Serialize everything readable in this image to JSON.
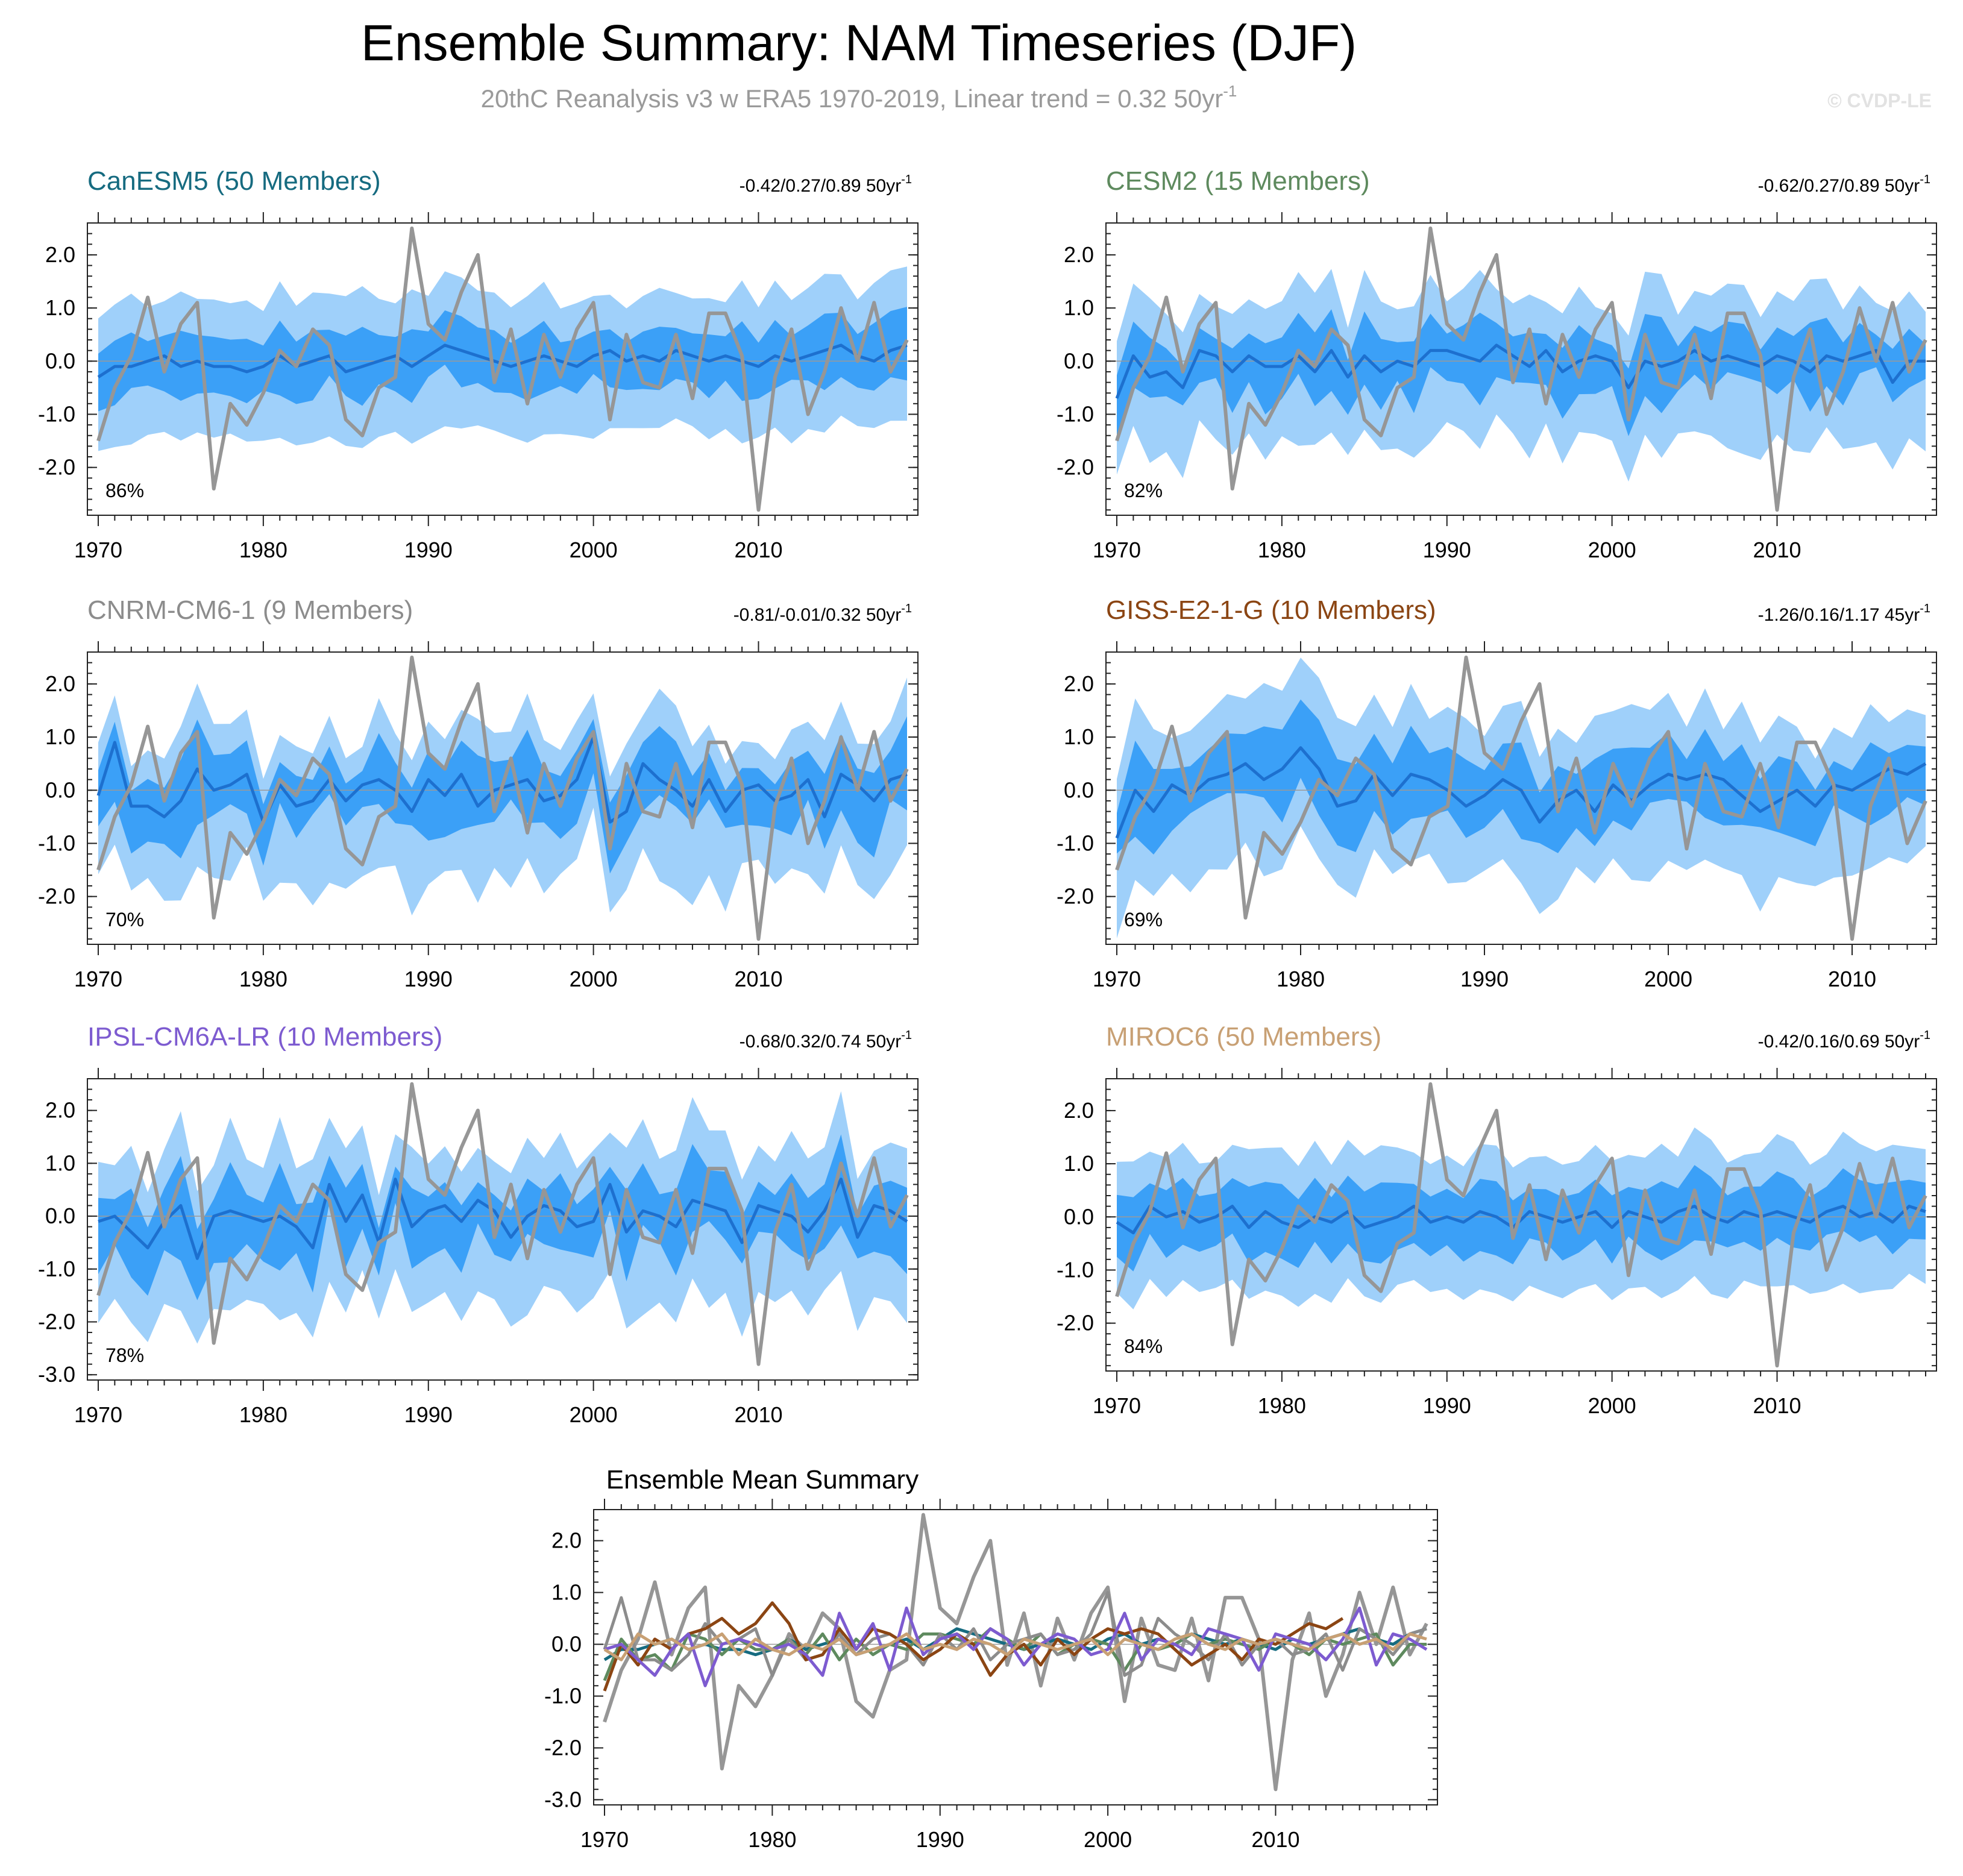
{
  "title": "Ensemble Summary: NAM Timeseries (DJF)",
  "subtitle": {
    "text": "20thC Reanalysis v3 w ERA5 1970-2019, Linear trend = 0.32 50yr",
    "sup": "-1"
  },
  "copyright": "© CVDP-LE",
  "colors": {
    "outer_band": "#9fd0fa",
    "inner_band": "#3ba0f7",
    "ensemble_mean": "#1d70cf",
    "observation": "#969696",
    "zero_line": "#9a9a9a"
  },
  "chart_data": [
    {
      "type": "area",
      "title": "CanESM5 (50 Members)",
      "title_color": "#166b80",
      "trend": "-0.42/0.27/0.89 50yr",
      "trend_sup": "-1",
      "percent": "86%",
      "x_start": 1970,
      "x_end": 2019,
      "ylim": [
        -2.9,
        2.6
      ],
      "yticks": [
        2.0,
        1.0,
        0.0,
        -1.0,
        -2.0
      ],
      "ytick_labels": [
        "2.0",
        "1.0",
        "0.0",
        "-1.0",
        "-2.0"
      ],
      "xticks": [
        1970,
        1980,
        1990,
        2000,
        2010
      ],
      "xtick_labels": [
        "1970",
        "1980",
        "1990",
        "2000",
        "2010"
      ],
      "outer_amp": 1.25,
      "inner_amp": 0.55,
      "variability": 0.35,
      "seed": 11
    },
    {
      "type": "area",
      "title": "CESM2 (15 Members)",
      "title_color": "#5e8a5e",
      "trend": "-0.62/0.27/0.89 50yr",
      "trend_sup": "-1",
      "percent": "82%",
      "x_start": 1970,
      "x_end": 2019,
      "ylim": [
        -2.9,
        2.6
      ],
      "yticks": [
        2.0,
        1.0,
        0.0,
        -1.0,
        -2.0
      ],
      "ytick_labels": [
        "2.0",
        "1.0",
        "0.0",
        "-1.0",
        "-2.0"
      ],
      "xticks": [
        1970,
        1980,
        1990,
        2000,
        2010
      ],
      "xtick_labels": [
        "1970",
        "1980",
        "1990",
        "2000",
        "2010"
      ],
      "outer_amp": 1.3,
      "inner_amp": 0.6,
      "variability": 0.55,
      "seed": 23
    },
    {
      "type": "area",
      "title": "CNRM-CM6-1 (9 Members)",
      "title_color": "#8c8c8c",
      "trend": "-0.81/-0.01/0.32 50yr",
      "trend_sup": "-1",
      "percent": "70%",
      "x_start": 1970,
      "x_end": 2019,
      "ylim": [
        -2.9,
        2.6
      ],
      "yticks": [
        2.0,
        1.0,
        0.0,
        -1.0,
        -2.0
      ],
      "ytick_labels": [
        "2.0",
        "1.0",
        "0.0",
        "-1.0",
        "-2.0"
      ],
      "xticks": [
        1970,
        1980,
        1990,
        2000,
        2010
      ],
      "xtick_labels": [
        "1970",
        "1980",
        "1990",
        "2000",
        "2010"
      ],
      "outer_amp": 1.3,
      "inner_amp": 0.7,
      "variability": 0.75,
      "seed": 37
    },
    {
      "type": "area",
      "title": "GISS-E2-1-G (10 Members)",
      "title_color": "#8b4513",
      "trend": "-1.26/0.16/1.17 45yr",
      "trend_sup": "-1",
      "percent": "69%",
      "x_start": 1970,
      "x_end": 2014,
      "ylim": [
        -2.9,
        2.6
      ],
      "yticks": [
        2.0,
        1.0,
        0.0,
        -1.0,
        -2.0
      ],
      "ytick_labels": [
        "2.0",
        "1.0",
        "0.0",
        "-1.0",
        "-2.0"
      ],
      "xticks": [
        1970,
        1980,
        1990,
        2000,
        2010
      ],
      "xtick_labels": [
        "1970",
        "1980",
        "1990",
        "2000",
        "2010"
      ],
      "outer_amp": 1.35,
      "inner_amp": 0.65,
      "variability": 0.6,
      "seed": 41
    },
    {
      "type": "area",
      "title": "IPSL-CM6A-LR (10 Members)",
      "title_color": "#7d5bd0",
      "trend": "-0.68/0.32/0.74 50yr",
      "trend_sup": "-1",
      "percent": "78%",
      "x_start": 1970,
      "x_end": 2019,
      "ylim": [
        -3.1,
        2.6
      ],
      "yticks": [
        2.0,
        1.0,
        0.0,
        -1.0,
        -2.0,
        -3.0
      ],
      "ytick_labels": [
        "2.0",
        "1.0",
        "0.0",
        "-1.0",
        "-2.0",
        "-3.0"
      ],
      "xticks": [
        1970,
        1980,
        1990,
        2000,
        2010
      ],
      "xtick_labels": [
        "1970",
        "1980",
        "1990",
        "2000",
        "2010"
      ],
      "outer_amp": 1.4,
      "inner_amp": 0.65,
      "variability": 0.7,
      "seed": 53
    },
    {
      "type": "area",
      "title": "MIROC6 (50 Members)",
      "title_color": "#c8a074",
      "trend": "-0.42/0.16/0.69 50yr",
      "trend_sup": "-1",
      "percent": "84%",
      "x_start": 1970,
      "x_end": 2019,
      "ylim": [
        -2.9,
        2.6
      ],
      "yticks": [
        2.0,
        1.0,
        0.0,
        -1.0,
        -2.0
      ],
      "ytick_labels": [
        "2.0",
        "1.0",
        "0.0",
        "-1.0",
        "-2.0"
      ],
      "xticks": [
        1970,
        1980,
        1990,
        2000,
        2010
      ],
      "xtick_labels": [
        "1970",
        "1980",
        "1990",
        "2000",
        "2010"
      ],
      "outer_amp": 1.25,
      "inner_amp": 0.6,
      "variability": 0.3,
      "seed": 67
    },
    {
      "type": "line",
      "title": "Ensemble Mean Summary",
      "x_start": 1970,
      "x_end": 2019,
      "ylim": [
        -3.1,
        2.6
      ],
      "yticks": [
        2.0,
        1.0,
        0.0,
        -1.0,
        -2.0,
        -3.0
      ],
      "ytick_labels": [
        "2.0",
        "1.0",
        "0.0",
        "-1.0",
        "-2.0",
        "-3.0"
      ],
      "xticks": [
        1970,
        1980,
        1990,
        2000,
        2010
      ],
      "xtick_labels": [
        "1970",
        "1980",
        "1990",
        "2000",
        "2010"
      ],
      "series": [
        {
          "name": "20thC Reanalysis v3 w ERA5",
          "color": "#969696"
        },
        {
          "name": "CanESM5",
          "color": "#166b80"
        },
        {
          "name": "CESM2",
          "color": "#5e8a5e"
        },
        {
          "name": "CNRM-CM6-1",
          "color": "#8c8c8c"
        },
        {
          "name": "GISS-E2-1-G",
          "color": "#8b4513"
        },
        {
          "name": "IPSL-CM6A-LR",
          "color": "#7d5bd0"
        },
        {
          "name": "MIROC6",
          "color": "#c8a074"
        }
      ]
    }
  ],
  "observation": {
    "name": "20thC Reanalysis v3 w ERA5",
    "years": [
      1970,
      1971,
      1972,
      1973,
      1974,
      1975,
      1976,
      1977,
      1978,
      1979,
      1980,
      1981,
      1982,
      1983,
      1984,
      1985,
      1986,
      1987,
      1988,
      1989,
      1990,
      1991,
      1992,
      1993,
      1994,
      1995,
      1996,
      1997,
      1998,
      1999,
      2000,
      2001,
      2002,
      2003,
      2004,
      2005,
      2006,
      2007,
      2008,
      2009,
      2010,
      2011,
      2012,
      2013,
      2014,
      2015,
      2016,
      2017,
      2018,
      2019
    ],
    "values": [
      -1.5,
      -0.5,
      0.1,
      1.2,
      -0.2,
      0.7,
      1.1,
      -2.4,
      -0.8,
      -1.2,
      -0.6,
      0.2,
      -0.1,
      0.6,
      0.3,
      -1.1,
      -1.4,
      -0.5,
      -0.3,
      2.5,
      0.7,
      0.4,
      1.3,
      2.0,
      -0.4,
      0.6,
      -0.8,
      0.5,
      -0.3,
      0.6,
      1.1,
      -1.1,
      0.5,
      -0.4,
      -0.5,
      0.5,
      -0.7,
      0.9,
      0.9,
      0.1,
      -2.8,
      -0.3,
      0.6,
      -1.0,
      -0.2,
      1.0,
      0.0,
      1.1,
      -0.2,
      0.4
    ]
  },
  "ensemble_means": {
    "CanESM5": [
      -0.3,
      -0.1,
      -0.1,
      0.0,
      0.1,
      -0.1,
      0.0,
      -0.1,
      -0.1,
      -0.2,
      -0.1,
      0.1,
      -0.1,
      0.0,
      0.1,
      -0.2,
      -0.1,
      0.0,
      0.1,
      -0.1,
      0.1,
      0.3,
      0.2,
      0.1,
      0.0,
      -0.1,
      0.0,
      0.1,
      0.0,
      -0.1,
      0.1,
      0.2,
      0.0,
      0.1,
      0.0,
      0.2,
      0.1,
      0.0,
      0.1,
      0.0,
      -0.1,
      0.1,
      0.0,
      0.1,
      0.2,
      0.3,
      0.1,
      0.0,
      0.2,
      0.3
    ],
    "CESM2": [
      -0.7,
      0.1,
      -0.3,
      -0.2,
      -0.5,
      0.2,
      0.1,
      -0.2,
      0.1,
      -0.1,
      -0.1,
      0.1,
      -0.2,
      0.2,
      -0.3,
      0.1,
      -0.2,
      0.0,
      -0.1,
      0.2,
      0.2,
      0.1,
      0.0,
      0.3,
      0.1,
      -0.1,
      0.2,
      -0.2,
      0.0,
      0.1,
      0.0,
      -0.5,
      0.0,
      -0.1,
      0.0,
      0.2,
      0.0,
      0.1,
      0.0,
      -0.1,
      0.1,
      0.0,
      -0.2,
      0.1,
      0.0,
      0.1,
      0.2,
      -0.4,
      0.0,
      0.0
    ],
    "CNRM-CM6-1": [
      -0.1,
      0.9,
      -0.3,
      -0.3,
      -0.5,
      -0.2,
      0.4,
      0.0,
      0.1,
      0.3,
      -0.6,
      0.1,
      -0.3,
      -0.2,
      0.2,
      -0.2,
      0.1,
      0.2,
      0.0,
      -0.4,
      0.2,
      -0.1,
      0.3,
      -0.3,
      0.0,
      0.1,
      0.2,
      -0.2,
      -0.1,
      0.2,
      1.0,
      -0.6,
      -0.4,
      0.5,
      0.2,
      0.0,
      -0.3,
      0.2,
      -0.4,
      0.0,
      0.1,
      -0.2,
      -0.1,
      0.2,
      -0.5,
      0.3,
      0.1,
      -0.2,
      0.2,
      0.3
    ],
    "GISS-E2-1-G": [
      -0.9,
      0.0,
      -0.4,
      0.1,
      -0.1,
      0.2,
      0.3,
      0.5,
      0.2,
      0.4,
      0.8,
      0.4,
      -0.3,
      -0.2,
      0.3,
      -0.1,
      0.3,
      0.2,
      0.0,
      -0.3,
      -0.1,
      0.2,
      0.0,
      -0.6,
      -0.2,
      0.0,
      -0.4,
      0.1,
      -0.2,
      0.1,
      0.3,
      0.2,
      0.3,
      0.2,
      -0.1,
      -0.4,
      -0.2,
      0.0,
      -0.3,
      0.1,
      0.0,
      0.2,
      0.4,
      0.3,
      0.5
    ],
    "IPSL-CM6A-LR": [
      -0.1,
      0.0,
      -0.3,
      -0.6,
      -0.1,
      0.2,
      -0.8,
      0.0,
      0.1,
      0.0,
      -0.1,
      0.0,
      -0.2,
      -0.6,
      0.6,
      -0.1,
      0.4,
      -0.5,
      0.7,
      -0.2,
      0.1,
      0.2,
      -0.1,
      0.3,
      0.1,
      -0.4,
      0.0,
      0.2,
      0.1,
      -0.2,
      -0.1,
      0.6,
      -0.3,
      0.1,
      0.0,
      -0.2,
      0.3,
      0.2,
      0.1,
      -0.5,
      0.2,
      0.1,
      0.0,
      -0.3,
      0.1,
      0.7,
      -0.4,
      0.2,
      0.1,
      -0.1
    ],
    "MIROC6": [
      -0.1,
      -0.3,
      0.2,
      0.0,
      0.1,
      -0.1,
      0.0,
      0.2,
      -0.2,
      0.1,
      -0.1,
      -0.2,
      0.0,
      -0.1,
      0.1,
      -0.2,
      -0.1,
      0.0,
      0.2,
      -0.1,
      0.0,
      -0.1,
      0.1,
      0.0,
      -0.2,
      0.1,
      0.0,
      -0.1,
      0.0,
      0.1,
      -0.2,
      0.1,
      0.0,
      -0.1,
      0.1,
      0.2,
      0.0,
      -0.1,
      0.1,
      0.0,
      0.1,
      0.0,
      -0.1,
      0.1,
      0.2,
      0.0,
      0.1,
      -0.1,
      0.2,
      0.1
    ]
  }
}
